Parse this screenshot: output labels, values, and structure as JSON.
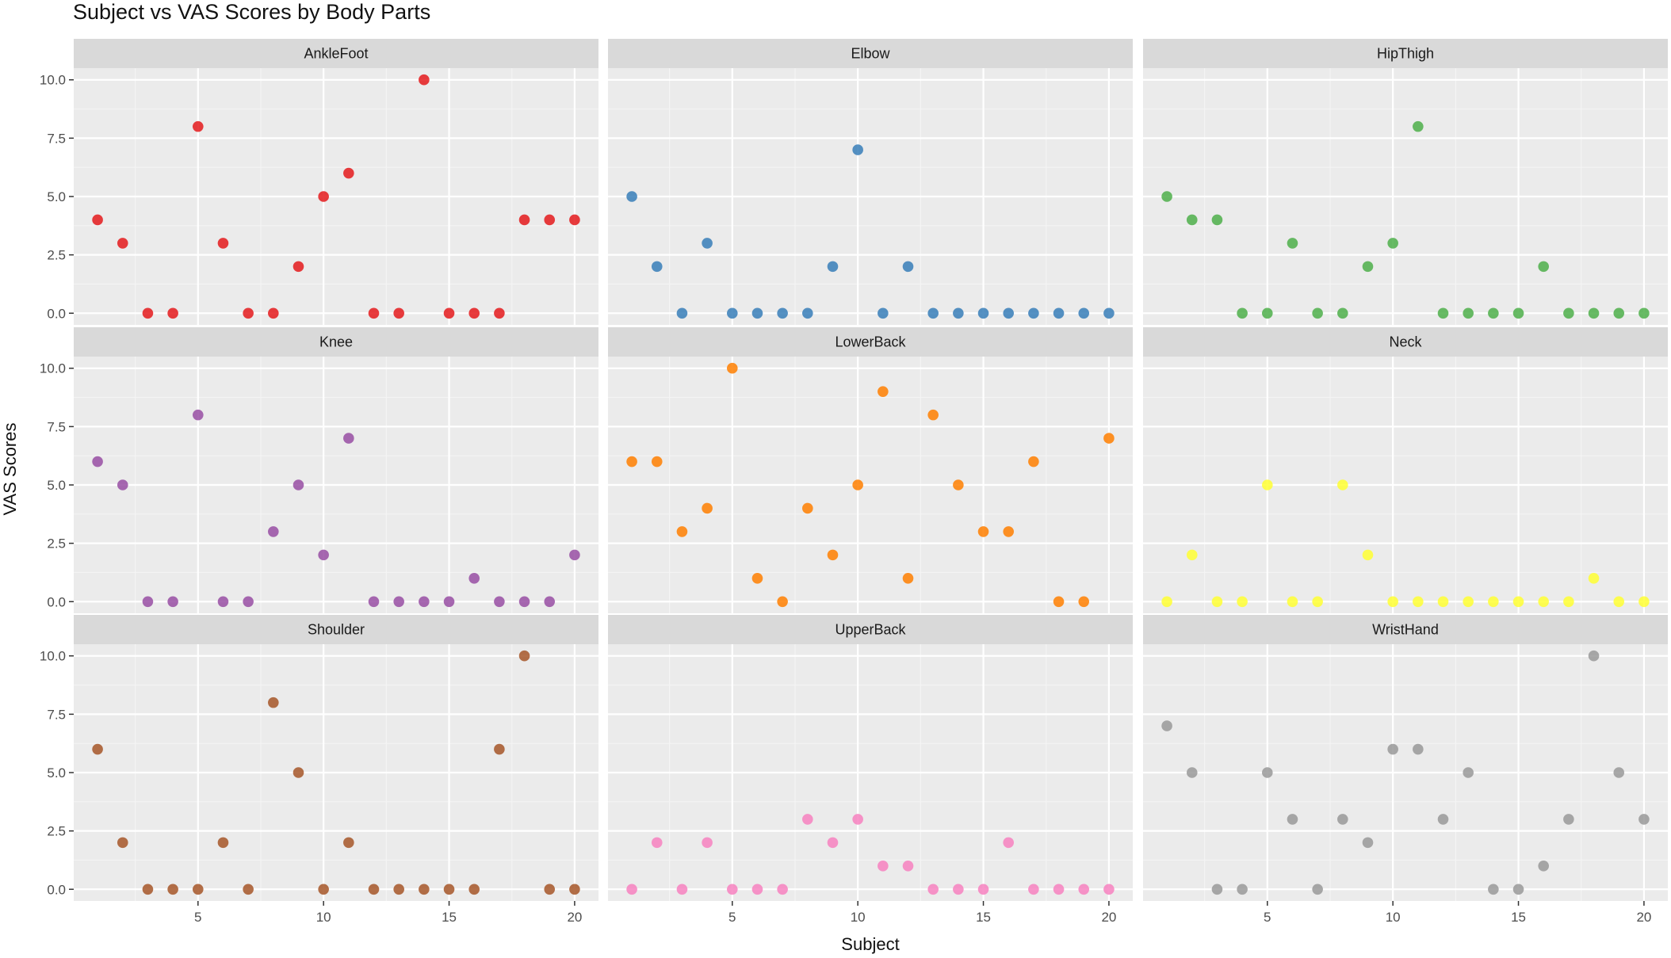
{
  "chart_data": {
    "type": "scatter",
    "title": "Subject vs VAS Scores by Body Parts",
    "xlabel": "Subject",
    "ylabel": "VAS Scores",
    "x": [
      1,
      2,
      3,
      4,
      5,
      6,
      7,
      8,
      9,
      10,
      11,
      12,
      13,
      14,
      15,
      16,
      17,
      18,
      19,
      20
    ],
    "xlim": [
      0.05,
      20.95
    ],
    "ylim": [
      -0.5,
      10.5
    ],
    "x_ticks": [
      5,
      10,
      15,
      20
    ],
    "x_tick_labels": [
      "5",
      "10",
      "15",
      "20"
    ],
    "y_ticks": [
      0,
      2.5,
      5,
      7.5,
      10
    ],
    "y_tick_labels": [
      "0.0",
      "2.5",
      "5.0",
      "7.5",
      "10.0"
    ],
    "grid": true,
    "facet_layout": "3x3",
    "panels": [
      {
        "name": "AnkleFoot",
        "color": "#e41a1c",
        "values": [
          4,
          3,
          0,
          0,
          8,
          3,
          0,
          0,
          2,
          5,
          6,
          0,
          0,
          10,
          0,
          0,
          0,
          4,
          4,
          4
        ]
      },
      {
        "name": "Elbow",
        "color": "#377eb8",
        "values": [
          5,
          2,
          0,
          3,
          0,
          0,
          0,
          0,
          2,
          7,
          0,
          2,
          0,
          0,
          0,
          0,
          0,
          0,
          0,
          0
        ]
      },
      {
        "name": "HipThigh",
        "color": "#4daf4a",
        "values": [
          5,
          4,
          4,
          0,
          0,
          3,
          0,
          0,
          2,
          3,
          8,
          0,
          0,
          0,
          0,
          2,
          0,
          0,
          0,
          0
        ]
      },
      {
        "name": "Knee",
        "color": "#984ea3",
        "values": [
          6,
          5,
          0,
          0,
          8,
          0,
          0,
          3,
          5,
          2,
          7,
          0,
          0,
          0,
          0,
          1,
          0,
          0,
          0,
          2
        ]
      },
      {
        "name": "LowerBack",
        "color": "#ff7f00",
        "values": [
          6,
          6,
          3,
          4,
          10,
          1,
          0,
          4,
          2,
          5,
          9,
          1,
          8,
          5,
          3,
          3,
          6,
          0,
          0,
          7
        ]
      },
      {
        "name": "Neck",
        "color": "#ffff33",
        "values": [
          0,
          2,
          0,
          0,
          5,
          0,
          0,
          5,
          2,
          0,
          0,
          0,
          0,
          0,
          0,
          0,
          0,
          1,
          0,
          0
        ]
      },
      {
        "name": "Shoulder",
        "color": "#a65628",
        "values": [
          6,
          2,
          0,
          0,
          0,
          2,
          0,
          8,
          5,
          0,
          2,
          0,
          0,
          0,
          0,
          0,
          6,
          10,
          0,
          0
        ]
      },
      {
        "name": "UpperBack",
        "color": "#f781bf",
        "values": [
          0,
          2,
          0,
          2,
          0,
          0,
          0,
          3,
          2,
          3,
          1,
          1,
          0,
          0,
          0,
          2,
          0,
          0,
          0,
          0
        ]
      },
      {
        "name": "WristHand",
        "color": "#999999",
        "values": [
          7,
          5,
          0,
          0,
          5,
          3,
          0,
          3,
          2,
          6,
          6,
          3,
          5,
          0,
          0,
          1,
          3,
          10,
          5,
          3
        ]
      }
    ]
  }
}
